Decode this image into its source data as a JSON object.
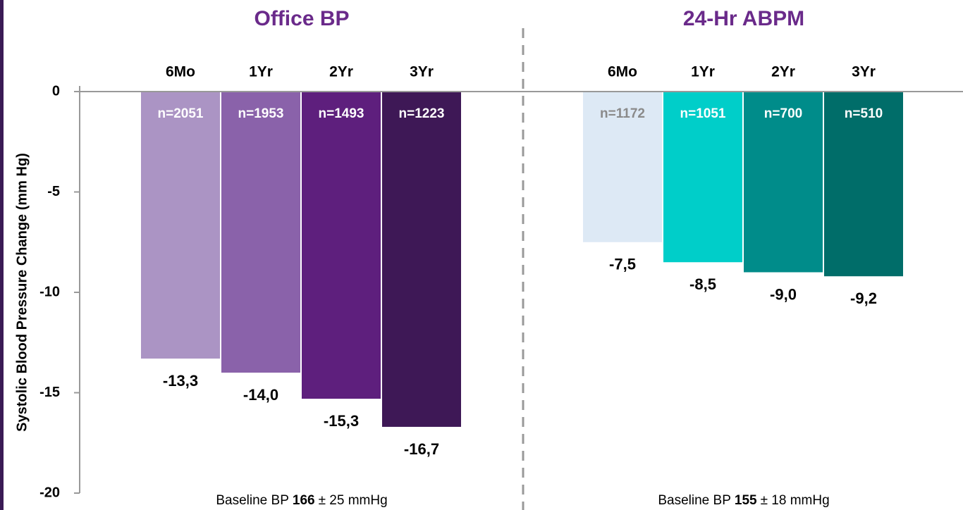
{
  "chart_data": [
    {
      "type": "bar",
      "title": "Office BP",
      "y_label": "Systolic Blood Pressure Change (mm Hg)",
      "ylim": [
        -20,
        0
      ],
      "yticks": [
        0,
        -5,
        -10,
        -15,
        -20
      ],
      "categories": [
        "6Mo",
        "1Yr",
        "2Yr",
        "3Yr"
      ],
      "values": [
        -13.3,
        -14.0,
        -15.3,
        -16.7
      ],
      "value_labels": [
        "-13,3",
        "-14,0",
        "-15,3",
        "-16,7"
      ],
      "n_labels": [
        "n=2051",
        "n=1953",
        "n=1493",
        "n=1223"
      ],
      "colors": [
        "#ab94c4",
        "#8a62aa",
        "#5e1f7d",
        "#3e1856"
      ],
      "n_label_colors": [
        "#ffffff",
        "#ffffff",
        "#ffffff",
        "#ffffff"
      ],
      "note": [
        "Baseline BP",
        "166",
        "± 25 mmHg"
      ]
    },
    {
      "type": "bar",
      "title": "24-Hr ABPM",
      "categories": [
        "6Mo",
        "1Yr",
        "2Yr",
        "3Yr"
      ],
      "values": [
        -7.5,
        -8.5,
        -9.0,
        -9.2
      ],
      "value_labels": [
        "-7,5",
        "-8,5",
        "-9,0",
        "-9,2"
      ],
      "n_labels": [
        "n=1172",
        "n=1051",
        "n=700",
        "n=510"
      ],
      "colors": [
        "#dde9f5",
        "#00cec9",
        "#008c8a",
        "#006d69"
      ],
      "n_label_colors": [
        "#8a8a8a",
        "#ffffff",
        "#ffffff",
        "#ffffff"
      ],
      "note": [
        "Baseline BP",
        "155",
        "± 18 mmHg"
      ]
    }
  ]
}
